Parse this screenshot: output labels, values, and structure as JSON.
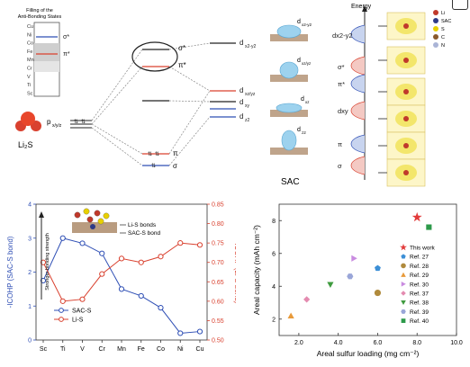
{
  "top": {
    "filling_title": "Filling of the Anti-Bonding States",
    "metals": [
      "Cu",
      "Ni",
      "Co",
      "Fe",
      "Mn",
      "Cr",
      "V",
      "Ti",
      "Sc"
    ],
    "sigma_star": "σ*",
    "pi_star": "π*",
    "sigma": "σ",
    "pi": "π",
    "li2s": "Li₂S",
    "p_label": "p",
    "p_sub": "x/y/z",
    "d_orbitals": [
      "d",
      "d",
      "d",
      "d",
      "d"
    ],
    "d_subs": [
      "x2-y2",
      "xz/yz",
      "xy",
      "z2"
    ],
    "sac_label": "SAC",
    "energy_label": "Energy",
    "right_levels": [
      "dx2-y2",
      "σ*",
      "π*",
      "dxy",
      "π",
      "σ"
    ],
    "middle_subs": [
      "x2-y2",
      "xz/yz",
      "xy",
      "xz",
      "z2"
    ],
    "legend": [
      "Li",
      "SAC",
      "S",
      "C",
      "N"
    ]
  },
  "legend_colors": {
    "Li": "#c0392b",
    "SAC": "#2e3a87",
    "S": "#e8d000",
    "C": "#8a5a2b",
    "N": "#aab4d6"
  },
  "chart_data": [
    {
      "type": "line",
      "categories": [
        "Sc",
        "Ti",
        "V",
        "Cr",
        "Mn",
        "Fe",
        "Co",
        "Ni",
        "Cu"
      ],
      "series": [
        {
          "name": "SAC-S",
          "axis": "left",
          "color": "#2f4fb5",
          "values": [
            1.75,
            3.0,
            2.85,
            2.55,
            1.5,
            1.3,
            0.95,
            0.2,
            0.25
          ]
        },
        {
          "name": "Li-S",
          "axis": "right",
          "color": "#d9412f",
          "values": [
            0.7,
            0.6,
            0.605,
            0.67,
            0.71,
            0.7,
            0.715,
            0.75,
            0.745
          ]
        }
      ],
      "ylabel_left": "-ICOHP (SAC-S bond)",
      "ylabel_right": "-ICOHP (Li-S bond)",
      "ylim_left": [
        0,
        4
      ],
      "yticks_left": [
        0,
        1,
        2,
        3,
        4
      ],
      "ylim_right": [
        0.5,
        0.85
      ],
      "yticks_right": [
        "0.50",
        "0.55",
        "0.60",
        "0.65",
        "0.70",
        "0.75",
        "0.80",
        "0.85"
      ],
      "arrow_label": "Stronger bonding strength",
      "inset_labels": [
        "Li-S bonds",
        "SAC-S bond"
      ],
      "legend_position": "bottom-left"
    },
    {
      "type": "scatter",
      "xlabel": "Areal sulfur loading (mg cm⁻²)",
      "ylabel": "Areal capacity (mAh cm⁻²)",
      "xlim": [
        1,
        10
      ],
      "ylim": [
        1,
        9
      ],
      "xticks": [
        "2.0",
        "4.0",
        "6.0",
        "8.0",
        "10.0"
      ],
      "yticks": [
        "2",
        "4",
        "6",
        "8"
      ],
      "legend_position": "right",
      "points": [
        {
          "name": "This work",
          "x": 8.0,
          "y": 8.2,
          "marker": "star",
          "color": "#e23b3b"
        },
        {
          "name": "Ref. 27",
          "x": 6.0,
          "y": 5.1,
          "marker": "pentagon",
          "color": "#3c8fd6"
        },
        {
          "name": "Ref. 28",
          "x": 6.0,
          "y": 3.6,
          "marker": "circle",
          "color": "#b08a3c"
        },
        {
          "name": "Ref. 29",
          "x": 1.6,
          "y": 2.2,
          "marker": "triangle-up",
          "color": "#e89a3a"
        },
        {
          "name": "Ref. 30",
          "x": 4.8,
          "y": 5.7,
          "marker": "triangle-right",
          "color": "#c98be0"
        },
        {
          "name": "Ref. 37",
          "x": 2.4,
          "y": 3.2,
          "marker": "diamond",
          "color": "#e48bb0"
        },
        {
          "name": "Ref. 38",
          "x": 3.6,
          "y": 4.1,
          "marker": "triangle-down",
          "color": "#3f9b3f"
        },
        {
          "name": "Ref. 39",
          "x": 4.6,
          "y": 4.6,
          "marker": "hexagon",
          "color": "#9aa6d8"
        },
        {
          "name": "Ref. 40",
          "x": 8.6,
          "y": 7.6,
          "marker": "square",
          "color": "#2d9a4a"
        }
      ]
    }
  ]
}
